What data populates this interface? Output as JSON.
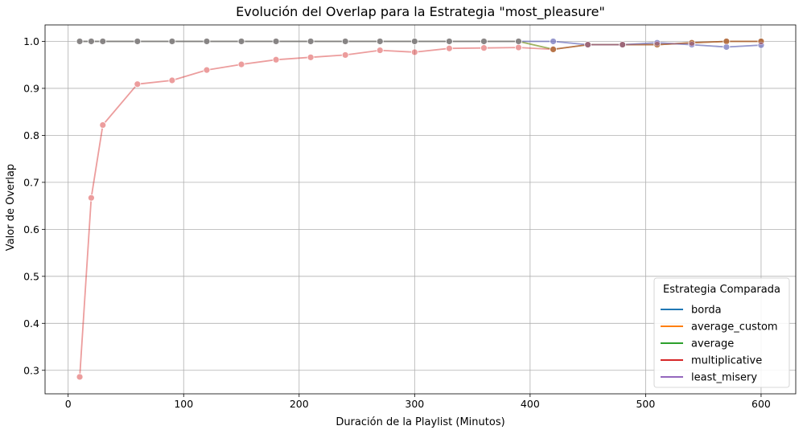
{
  "chart_data": {
    "type": "line",
    "title": "Evolución del Overlap para la Estrategia \"most_pleasure\"",
    "xlabel": "Duración de la Playlist (Minutos)",
    "ylabel": "Valor de Overlap",
    "xlim": [
      -20,
      630
    ],
    "ylim": [
      0.25,
      1.035
    ],
    "xticks": [
      0,
      100,
      200,
      300,
      400,
      500,
      600
    ],
    "yticks": [
      0.3,
      0.4,
      0.5,
      0.6,
      0.7,
      0.8,
      0.9,
      1.0
    ],
    "grid": true,
    "legend": {
      "title": "Estrategia Comparada",
      "position": "lower-right"
    },
    "x": [
      10,
      20,
      30,
      60,
      90,
      120,
      150,
      180,
      210,
      240,
      270,
      300,
      330,
      360,
      390,
      420,
      450,
      480,
      510,
      540,
      570,
      600
    ],
    "series": [
      {
        "name": "borda",
        "color": "#1f77b4",
        "values": [
          1.0,
          1.0,
          1.0,
          1.0,
          1.0,
          1.0,
          1.0,
          1.0,
          1.0,
          1.0,
          1.0,
          1.0,
          1.0,
          1.0,
          1.0,
          1.0,
          0.993,
          0.993,
          0.997,
          0.993,
          0.988,
          0.992
        ]
      },
      {
        "name": "average_custom",
        "color": "#ff7f0e",
        "values": [
          1.0,
          1.0,
          1.0,
          1.0,
          1.0,
          1.0,
          1.0,
          1.0,
          1.0,
          1.0,
          1.0,
          1.0,
          1.0,
          1.0,
          1.0,
          0.983,
          0.993,
          0.993,
          0.993,
          0.997,
          1.0,
          1.0
        ]
      },
      {
        "name": "average",
        "color": "#2ca02c",
        "values": [
          1.0,
          1.0,
          1.0,
          1.0,
          1.0,
          1.0,
          1.0,
          1.0,
          1.0,
          1.0,
          1.0,
          1.0,
          1.0,
          1.0,
          1.0,
          0.983,
          0.993,
          0.993,
          0.993,
          0.997,
          1.0,
          1.0
        ]
      },
      {
        "name": "multiplicative",
        "color": "#d62728",
        "values": [
          0.286,
          0.667,
          0.822,
          0.909,
          0.917,
          0.939,
          0.951,
          0.961,
          0.966,
          0.971,
          0.981,
          0.977,
          0.985,
          0.986,
          0.987,
          0.983,
          0.993,
          0.993,
          0.993,
          0.997,
          1.0,
          1.0
        ]
      },
      {
        "name": "least_misery",
        "color": "#9467bd",
        "values": [
          1.0,
          1.0,
          1.0,
          1.0,
          1.0,
          1.0,
          1.0,
          1.0,
          1.0,
          1.0,
          1.0,
          1.0,
          1.0,
          1.0,
          1.0,
          1.0,
          0.993,
          0.993,
          0.997,
          0.993,
          0.988,
          0.992
        ]
      }
    ]
  }
}
